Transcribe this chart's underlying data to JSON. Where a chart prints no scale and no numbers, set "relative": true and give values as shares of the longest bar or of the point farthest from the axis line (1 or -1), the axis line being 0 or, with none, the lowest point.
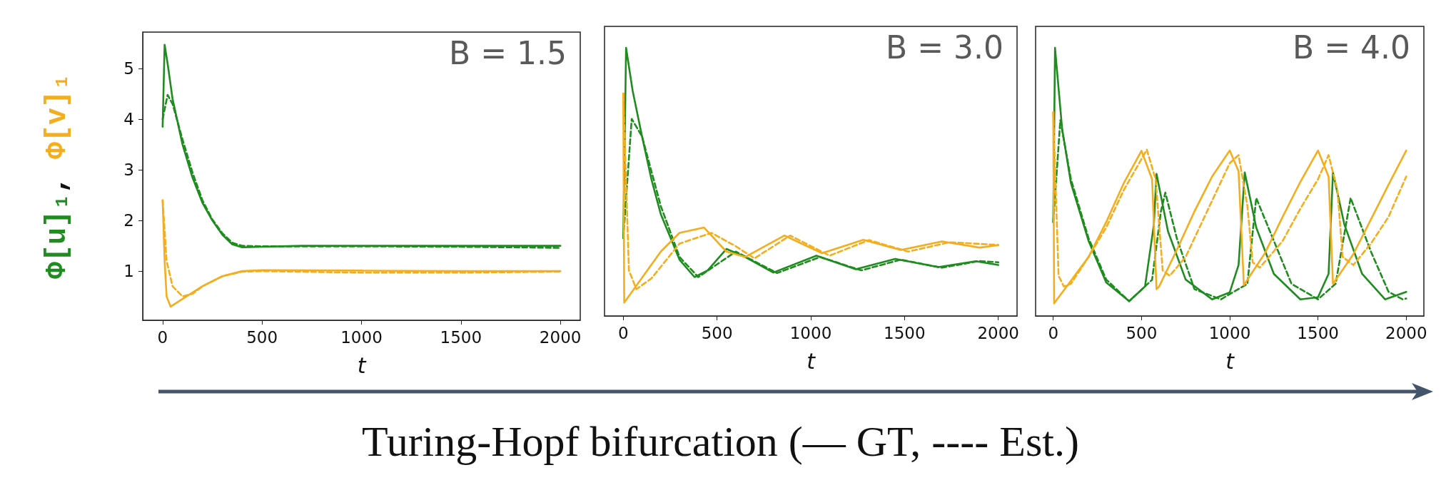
{
  "chart_data": [
    {
      "type": "line",
      "title": "B = 1.5",
      "ylabel": "Φ[u]₁, Φ[v]₁",
      "xlabel": "t",
      "xlim": [
        -100,
        2100
      ],
      "xticks": [
        0,
        500,
        1000,
        1500,
        2000
      ],
      "ylim": [
        0.03,
        5.72
      ],
      "yticks": [
        1,
        2,
        3,
        4,
        5
      ],
      "grid": false,
      "marker": "none",
      "annotations": [
        "Turing-Hopf bifurcation (— GT, ---- Est.)"
      ],
      "series": [
        {
          "color": "#1e8c1e",
          "line_style": "solid",
          "x": [
            0,
            10,
            25,
            50,
            100,
            150,
            200,
            250,
            300,
            350,
            400,
            500,
            700,
            1000,
            1500,
            2000
          ],
          "values": [
            3.85,
            5.47,
            5.1,
            4.4,
            3.5,
            2.85,
            2.35,
            2.0,
            1.72,
            1.53,
            1.47,
            1.48,
            1.5,
            1.5,
            1.5,
            1.5
          ]
        },
        {
          "color": "#1e8c1e",
          "line_style": "dashed",
          "x": [
            0,
            25,
            50,
            100,
            150,
            200,
            250,
            300,
            350,
            400,
            500,
            1000,
            1500,
            2000
          ],
          "values": [
            4.0,
            4.48,
            4.3,
            3.6,
            2.95,
            2.4,
            2.02,
            1.75,
            1.56,
            1.5,
            1.49,
            1.49,
            1.48,
            1.46
          ]
        },
        {
          "color": "#f4ad1c",
          "line_style": "solid",
          "x": [
            0,
            10,
            20,
            40,
            100,
            200,
            300,
            400,
            500,
            1000,
            1500,
            2000
          ],
          "values": [
            2.4,
            1.2,
            0.5,
            0.3,
            0.45,
            0.7,
            0.9,
            1.0,
            1.02,
            1.01,
            1.0,
            1.0
          ]
        },
        {
          "color": "#f4ad1c",
          "line_style": "dashed",
          "x": [
            0,
            20,
            50,
            100,
            150,
            200,
            300,
            400,
            500,
            1000,
            1500,
            2000
          ],
          "values": [
            2.4,
            1.2,
            0.7,
            0.5,
            0.55,
            0.7,
            0.9,
            0.99,
            1.0,
            0.97,
            0.97,
            0.99
          ]
        }
      ]
    },
    {
      "type": "line",
      "title": "B = 3.0",
      "xlabel": "t",
      "xlim": [
        -100,
        2100
      ],
      "xticks": [
        0,
        500,
        1000,
        1500,
        2000
      ],
      "relative": true,
      "grid": false,
      "marker": "none",
      "series": [
        {
          "color": "#1e8c1e",
          "line_style": "solid",
          "x": [
            0,
            15,
            50,
            100,
            150,
            200,
            300,
            380,
            450,
            550,
            650,
            800,
            1030,
            1240,
            1450,
            1680,
            1880,
            2000
          ],
          "values": [
            0.29,
            1.0,
            0.84,
            0.67,
            0.51,
            0.38,
            0.21,
            0.145,
            0.17,
            0.25,
            0.22,
            0.162,
            0.225,
            0.174,
            0.213,
            0.182,
            0.204,
            0.19
          ]
        },
        {
          "color": "#1e8c1e",
          "line_style": "dashed",
          "x": [
            0,
            45,
            100,
            200,
            300,
            400,
            600,
            820,
            1050,
            1270,
            1480,
            1700,
            1900,
            2000
          ],
          "values": [
            0.29,
            0.735,
            0.67,
            0.41,
            0.22,
            0.145,
            0.24,
            0.16,
            0.22,
            0.17,
            0.21,
            0.18,
            0.205,
            0.2
          ]
        },
        {
          "color": "#f4ad1c",
          "line_style": "solid",
          "x": [
            0,
            5,
            200,
            300,
            430,
            550,
            650,
            860,
            1060,
            1280,
            1480,
            1700,
            1900,
            2000
          ],
          "values": [
            0.83,
            0.05,
            0.24,
            0.31,
            0.33,
            0.24,
            0.22,
            0.3,
            0.234,
            0.284,
            0.246,
            0.278,
            0.255,
            0.264
          ]
        },
        {
          "color": "#f4ad1c",
          "line_style": "dashed",
          "x": [
            0,
            30,
            70,
            150,
            300,
            470,
            600,
            700,
            890,
            1100,
            1310,
            1520,
            1740,
            2000
          ],
          "values": [
            0.83,
            0.17,
            0.1,
            0.14,
            0.27,
            0.31,
            0.26,
            0.215,
            0.3,
            0.225,
            0.283,
            0.24,
            0.275,
            0.265
          ]
        }
      ]
    },
    {
      "type": "line",
      "title": "B = 4.0",
      "xlabel": "t",
      "xlim": [
        -100,
        2100
      ],
      "xticks": [
        0,
        500,
        1000,
        1500,
        2000
      ],
      "relative": true,
      "grid": false,
      "marker": "none",
      "series": [
        {
          "color": "#1e8c1e",
          "line_style": "solid",
          "x": [
            0,
            10,
            50,
            100,
            200,
            300,
            430,
            520,
            570,
            585,
            650,
            750,
            900,
            1000,
            1050,
            1085,
            1150,
            1250,
            1400,
            1500,
            1560,
            1585,
            1650,
            1750,
            1880,
            2000
          ],
          "values": [
            0.35,
            1.0,
            0.7,
            0.496,
            0.28,
            0.125,
            0.055,
            0.11,
            0.34,
            0.53,
            0.316,
            0.136,
            0.062,
            0.088,
            0.19,
            0.535,
            0.33,
            0.157,
            0.062,
            0.07,
            0.157,
            0.535,
            0.34,
            0.157,
            0.062,
            0.09
          ]
        },
        {
          "color": "#1e8c1e",
          "line_style": "dashed",
          "x": [
            0,
            40,
            100,
            200,
            300,
            430,
            560,
            610,
            635,
            700,
            800,
            950,
            1100,
            1150,
            1250,
            1350,
            1500,
            1600,
            1685,
            1800,
            1900,
            1980,
            2000
          ],
          "values": [
            0.35,
            0.73,
            0.51,
            0.29,
            0.136,
            0.055,
            0.135,
            0.39,
            0.46,
            0.29,
            0.1,
            0.062,
            0.12,
            0.44,
            0.28,
            0.12,
            0.062,
            0.12,
            0.44,
            0.24,
            0.09,
            0.062,
            0.065
          ]
        },
        {
          "color": "#f4ad1c",
          "line_style": "solid",
          "x": [
            0,
            5,
            200,
            300,
            400,
            500,
            560,
            585,
            600,
            700,
            800,
            900,
            1000,
            1050,
            1080,
            1200,
            1300,
            1400,
            1500,
            1560,
            1585,
            1700,
            1800,
            1900,
            2000
          ],
          "values": [
            0.76,
            0.047,
            0.22,
            0.35,
            0.496,
            0.616,
            0.51,
            0.1,
            0.11,
            0.246,
            0.39,
            0.52,
            0.617,
            0.54,
            0.115,
            0.235,
            0.37,
            0.5,
            0.617,
            0.52,
            0.12,
            0.23,
            0.36,
            0.49,
            0.617
          ]
        },
        {
          "color": "#f4ad1c",
          "line_style": "dashed",
          "x": [
            0,
            30,
            60,
            100,
            200,
            300,
            400,
            530,
            580,
            620,
            660,
            750,
            900,
            1000,
            1050,
            1100,
            1130,
            1170,
            1300,
            1400,
            1500,
            1560,
            1610,
            1640,
            1700,
            1800,
            1900,
            2000
          ],
          "values": [
            0.76,
            0.15,
            0.11,
            0.12,
            0.22,
            0.33,
            0.47,
            0.62,
            0.51,
            0.17,
            0.15,
            0.22,
            0.43,
            0.57,
            0.6,
            0.41,
            0.2,
            0.18,
            0.28,
            0.4,
            0.51,
            0.6,
            0.47,
            0.22,
            0.19,
            0.27,
            0.37,
            0.52
          ]
        }
      ]
    }
  ]
}
